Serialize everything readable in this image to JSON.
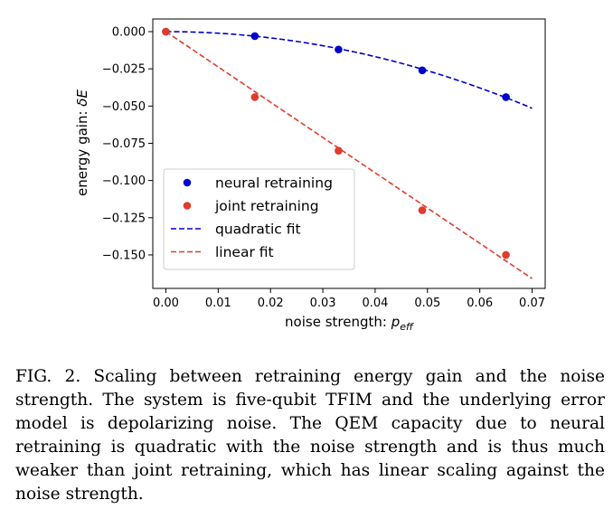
{
  "chart_data": {
    "type": "scatter",
    "xlabel": "noise strength: ",
    "xlabel_symbol": "p",
    "xlabel_subscript": "eff",
    "ylabel": "energy gain: ",
    "ylabel_symbol": "δE",
    "xlim": [
      -0.0025,
      0.0725
    ],
    "ylim": [
      -0.1725,
      0.0085
    ],
    "xticks": [
      0.0,
      0.01,
      0.02,
      0.03,
      0.04,
      0.05,
      0.06,
      0.07
    ],
    "xtick_labels": [
      "0.00",
      "0.01",
      "0.02",
      "0.03",
      "0.04",
      "0.05",
      "0.06",
      "0.07"
    ],
    "yticks": [
      0.0,
      -0.025,
      -0.05,
      -0.075,
      -0.1,
      -0.125,
      -0.15
    ],
    "ytick_labels": [
      "0.000",
      "−0.025",
      "−0.050",
      "−0.075",
      "−0.100",
      "−0.125",
      "−0.150"
    ],
    "grid": false,
    "legend_position": "lower-left",
    "series": [
      {
        "name": "neural retraining",
        "kind": "points",
        "color": "#0000cc",
        "x": [
          0.0,
          0.017,
          0.033,
          0.049,
          0.065
        ],
        "y": [
          0.0,
          -0.003,
          -0.012,
          -0.026,
          -0.044
        ]
      },
      {
        "name": "joint retraining",
        "kind": "points",
        "color": "#e03c2c",
        "x": [
          0.0,
          0.017,
          0.033,
          0.049,
          0.065
        ],
        "y": [
          0.0,
          -0.044,
          -0.08,
          -0.12,
          -0.15
        ]
      },
      {
        "name": "quadratic fit",
        "kind": "dashed-line",
        "color": "#0000cc",
        "x_range": [
          0.0,
          0.07
        ],
        "coefficient": -10.5,
        "exponent": 2
      },
      {
        "name": "linear fit",
        "kind": "dashed-line",
        "color": "#e03c2c",
        "x_range": [
          0.0,
          0.07
        ],
        "coefficient": -2.37,
        "exponent": 1
      }
    ]
  },
  "caption": "FIG. 2. Scaling between retraining energy gain and the noise strength. The system is five-qubit TFIM and the underlying error model is depolarizing noise.  The QEM capacity due to neural retraining is quadratic with the noise strength and is thus much weaker than joint retraining, which has linear scaling against the noise strength."
}
